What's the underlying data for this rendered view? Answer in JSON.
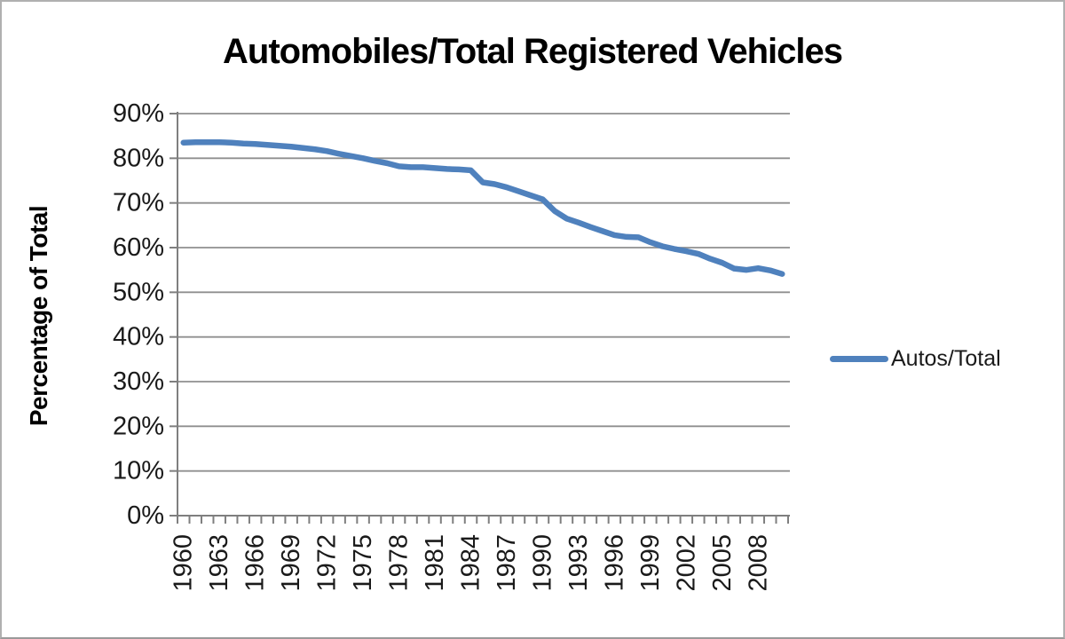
{
  "chart_data": {
    "type": "line",
    "title": "Automobiles/Total Registered Vehicles",
    "ylabel": "Percentage of Total",
    "xlabel": "",
    "grid": true,
    "legend_position": "right",
    "ylim": [
      0,
      90
    ],
    "ytick_step": 10,
    "ytick_suffix": "%",
    "xtick_labels": [
      "1960",
      "1963",
      "1966",
      "1969",
      "1972",
      "1975",
      "1978",
      "1981",
      "1984",
      "1987",
      "1990",
      "1993",
      "1996",
      "1999",
      "2002",
      "2005",
      "2008"
    ],
    "x": [
      1960,
      1961,
      1962,
      1963,
      1964,
      1965,
      1966,
      1967,
      1968,
      1969,
      1970,
      1971,
      1972,
      1973,
      1974,
      1975,
      1976,
      1977,
      1978,
      1979,
      1980,
      1981,
      1982,
      1983,
      1984,
      1985,
      1986,
      1987,
      1988,
      1989,
      1990,
      1991,
      1992,
      1993,
      1994,
      1995,
      1996,
      1997,
      1998,
      1999,
      2000,
      2001,
      2002,
      2003,
      2004,
      2005,
      2006,
      2007,
      2008,
      2009,
      2010
    ],
    "series": [
      {
        "name": "Autos/Total",
        "color": "#4F81BD",
        "values": [
          83.5,
          83.6,
          83.6,
          83.6,
          83.5,
          83.3,
          83.2,
          83.0,
          82.8,
          82.6,
          82.3,
          82.0,
          81.6,
          81.0,
          80.5,
          80.0,
          79.4,
          78.9,
          78.2,
          78.0,
          78.0,
          77.8,
          77.6,
          77.5,
          77.3,
          74.6,
          74.2,
          73.5,
          72.6,
          71.7,
          70.8,
          68.2,
          66.5,
          65.6,
          64.6,
          63.7,
          62.8,
          62.4,
          62.3,
          61.2,
          60.3,
          59.7,
          59.2,
          58.6,
          57.5,
          56.6,
          55.3,
          55.0,
          55.4,
          54.9,
          54.1
        ]
      }
    ],
    "colors": {
      "gridline": "#8f8f8f",
      "axis": "#7f7f7f",
      "tick_label": "#1a1a1a"
    }
  }
}
